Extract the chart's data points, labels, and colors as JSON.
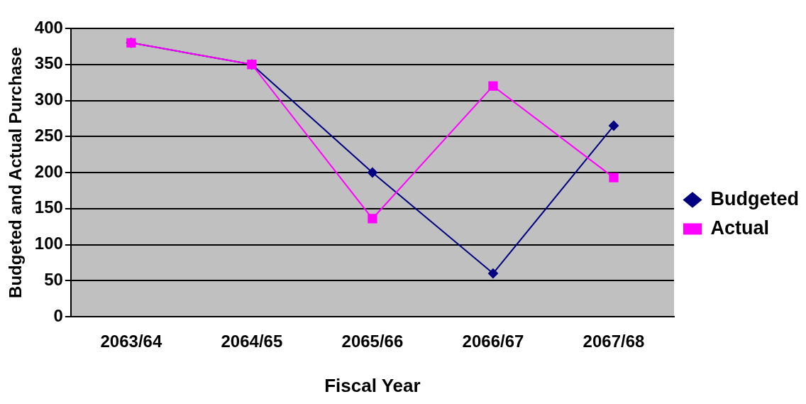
{
  "chart_data": {
    "type": "line",
    "xlabel": "Fiscal Year",
    "ylabel": "Budgeted and Actual Purchase",
    "categories": [
      "2063/64",
      "2064/65",
      "2065/66",
      "2066/67",
      "2067/68"
    ],
    "series": [
      {
        "name": "Budgeted",
        "color": "#000080",
        "marker": "diamond",
        "values": [
          380,
          350,
          200,
          60,
          265
        ]
      },
      {
        "name": "Actual",
        "color": "#ff00ff",
        "marker": "square",
        "values": [
          380,
          350,
          136,
          320,
          193
        ]
      }
    ],
    "ylim": [
      0,
      400
    ],
    "yticks": [
      0,
      50,
      100,
      150,
      200,
      250,
      300,
      350,
      400
    ],
    "grid": "y",
    "legend": "right"
  }
}
